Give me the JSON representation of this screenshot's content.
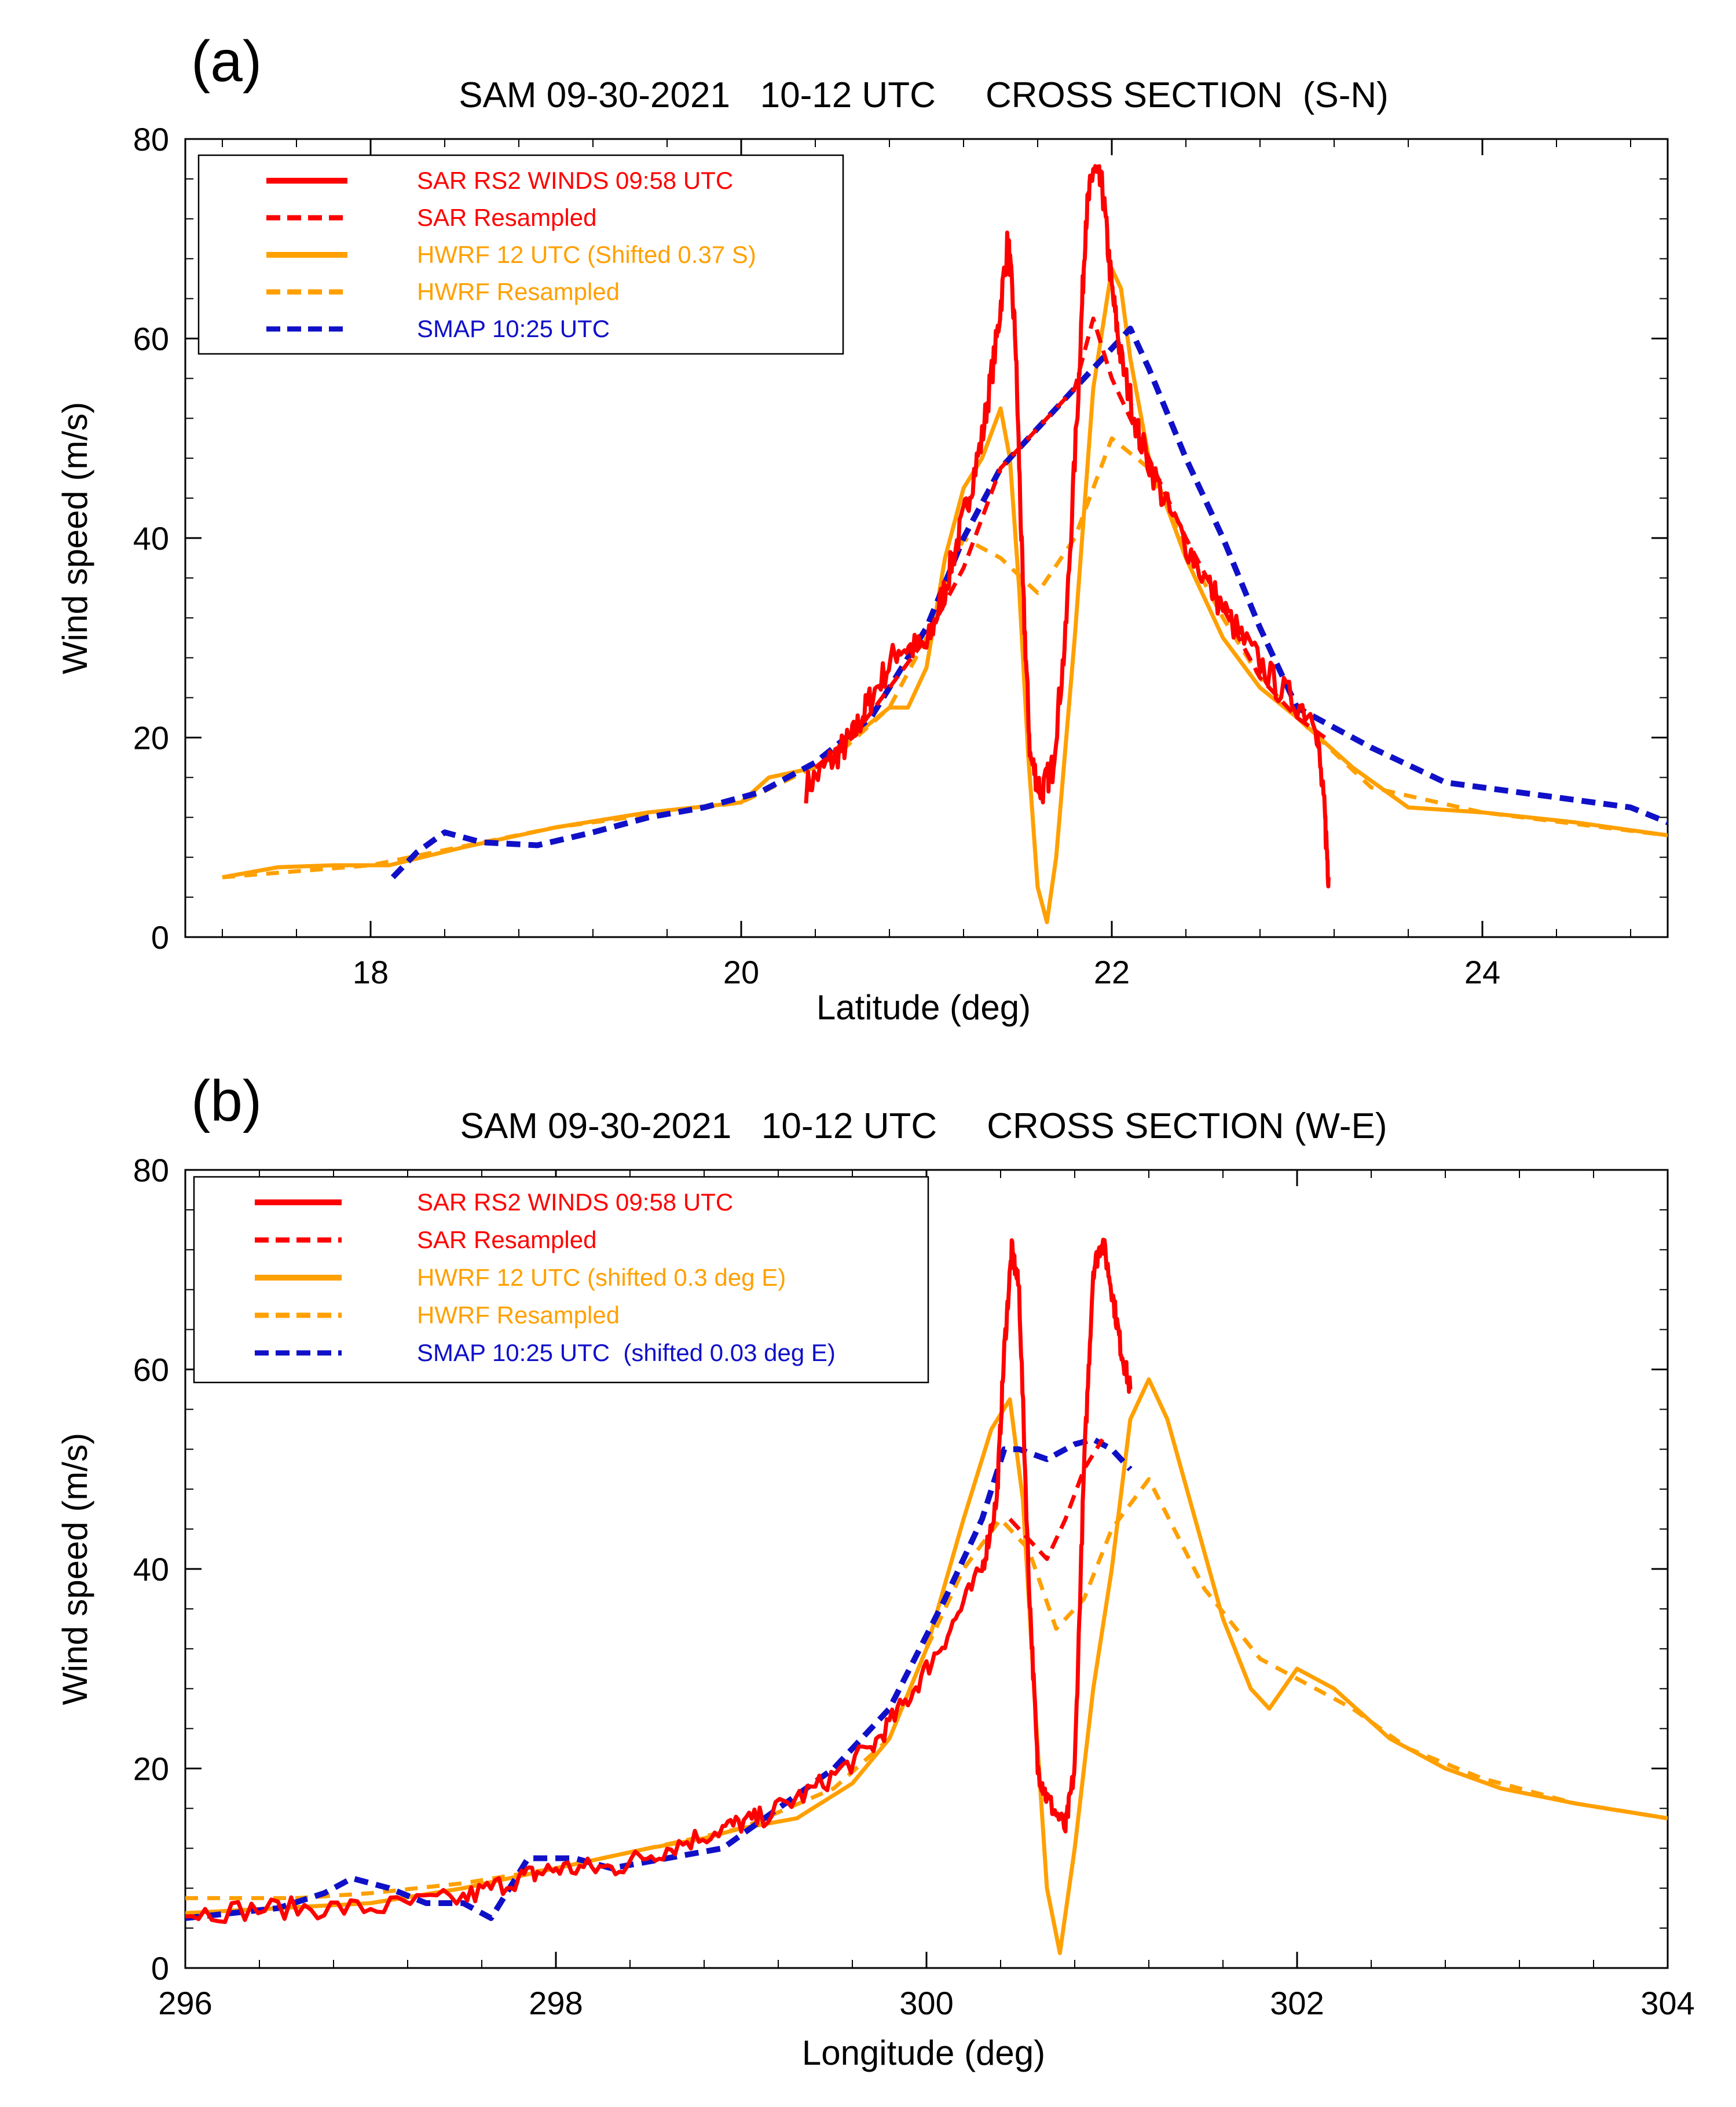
{
  "colors": {
    "sar": "#ff0000",
    "hwrf": "#ffa000",
    "smap": "#1010c8",
    "axis": "#000000"
  },
  "chart_data": [
    {
      "type": "line",
      "panel_label": "(a)",
      "title": "SAM 09-30-2021   10-12 UTC     CROSS SECTION  (S-N)",
      "xlabel": "Latitude (deg)",
      "ylabel": "Wind speed (m/s)",
      "xlim": [
        17.0,
        25.0
      ],
      "ylim": [
        0,
        80
      ],
      "xticks": [
        18,
        20,
        22,
        24
      ],
      "yticks": [
        0,
        20,
        40,
        60,
        80
      ],
      "legend_position": "top-left",
      "series": [
        {
          "name": "SAR RS2 WINDS 09:58 UTC",
          "color": "#ff0000",
          "style": "solid",
          "noise": 1.6,
          "x": [
            20.35,
            20.5,
            20.6,
            20.7,
            20.85,
            21.0,
            21.1,
            21.2,
            21.3,
            21.38,
            21.44,
            21.48,
            21.52,
            21.56,
            21.62,
            21.68,
            21.75,
            21.82,
            21.86,
            21.9,
            21.95,
            22.0,
            22.05,
            22.15,
            22.3,
            22.5,
            22.7,
            22.9,
            23.1,
            23.15,
            23.17
          ],
          "y": [
            15,
            18,
            20,
            24,
            29,
            29,
            35,
            42,
            50,
            60,
            70,
            60,
            35,
            18,
            14.5,
            17,
            30,
            55,
            72,
            77,
            75,
            65,
            58,
            50,
            43,
            36,
            30,
            25,
            22,
            12,
            6
          ]
        },
        {
          "name": "SAR Resampled",
          "color": "#ff0000",
          "style": "dashed",
          "x": [
            20.4,
            20.6,
            20.8,
            21.0,
            21.2,
            21.4,
            21.6,
            21.8,
            21.9,
            22.0,
            22.2,
            22.4,
            22.6,
            22.8,
            23.0,
            23.15
          ],
          "y": [
            17,
            20,
            25,
            30,
            37,
            47,
            51,
            55,
            62,
            56,
            48,
            40,
            33,
            26,
            22,
            20
          ]
        },
        {
          "name": "HWRF 12 UTC (Shifted 0.37 S)",
          "color": "#ffa000",
          "style": "solid",
          "x": [
            17.2,
            17.5,
            17.8,
            18.1,
            18.5,
            19.0,
            19.5,
            20.0,
            20.15,
            20.4,
            20.6,
            20.8,
            20.9,
            21.0,
            21.1,
            21.2,
            21.3,
            21.4,
            21.45,
            21.5,
            21.55,
            21.6,
            21.65,
            21.7,
            21.8,
            21.9,
            22.0,
            22.05,
            22.1,
            22.2,
            22.4,
            22.6,
            22.8,
            23.0,
            23.3,
            23.6,
            24.0,
            24.5,
            25.0
          ],
          "y": [
            6,
            7,
            7.2,
            7.2,
            9,
            11,
            12.5,
            13.5,
            16,
            17,
            20,
            23,
            23,
            27,
            38,
            45,
            48,
            53,
            48,
            35,
            18,
            5,
            1.5,
            8,
            30,
            55,
            67,
            65,
            58,
            48,
            38,
            30,
            25,
            22,
            17,
            13,
            12.5,
            11.5,
            10.2
          ]
        },
        {
          "name": "HWRF Resampled",
          "color": "#ffa000",
          "style": "dashed",
          "x": [
            17.2,
            18.0,
            19.0,
            20.0,
            20.5,
            20.8,
            21.0,
            21.2,
            21.4,
            21.6,
            21.8,
            22.0,
            22.2,
            22.4,
            22.6,
            22.8,
            23.0,
            23.4,
            24.0,
            25.0
          ],
          "y": [
            6,
            7.2,
            11,
            13.5,
            18,
            23,
            30,
            40,
            38,
            34.5,
            40,
            50,
            47,
            39,
            32,
            26,
            22,
            15,
            12.5,
            10.2
          ]
        },
        {
          "name": "SMAP 10:25 UTC",
          "color": "#1010c8",
          "style": "dashed",
          "x": [
            18.12,
            18.25,
            18.4,
            18.6,
            18.9,
            19.2,
            19.5,
            19.8,
            20.1,
            20.4,
            20.7,
            21.0,
            21.2,
            21.4,
            21.6,
            21.8,
            22.0,
            22.1,
            22.2,
            22.4,
            22.6,
            22.8,
            23.0,
            23.4,
            23.8,
            24.4,
            24.8,
            25.0
          ],
          "y": [
            6,
            8.5,
            10.5,
            9.5,
            9.2,
            10.5,
            12,
            13,
            14.5,
            17.5,
            22,
            31,
            40,
            47,
            51,
            55,
            59,
            61,
            57,
            48,
            40,
            31,
            23,
            19,
            15.5,
            14,
            13,
            11.5
          ]
        }
      ]
    },
    {
      "type": "line",
      "panel_label": "(b)",
      "title": "SAM 09-30-2021   10-12 UTC     CROSS SECTION (W-E)",
      "xlabel": "Longitude (deg)",
      "ylabel": "Wind speed (m/s)",
      "xlim": [
        296,
        304
      ],
      "ylim": [
        0,
        80
      ],
      "xticks": [
        296,
        298,
        300,
        302,
        304
      ],
      "yticks": [
        0,
        20,
        40,
        60,
        80
      ],
      "legend_position": "top-left",
      "series": [
        {
          "name": "SAR RS2 WINDS 09:58 UTC",
          "color": "#ff0000",
          "style": "solid",
          "noise": 1.1,
          "x": [
            296.0,
            296.5,
            297.0,
            297.5,
            297.8,
            298.0,
            298.3,
            298.6,
            298.9,
            299.1,
            299.4,
            299.7,
            299.9,
            300.1,
            300.3,
            300.38,
            300.42,
            300.46,
            300.5,
            300.55,
            300.6,
            300.65,
            300.75,
            300.8,
            300.85,
            300.9,
            300.95,
            301.0,
            301.05,
            301.1
          ],
          "y": [
            5.5,
            6,
            6,
            7,
            9,
            10,
            10,
            12,
            14,
            15,
            18,
            22,
            27,
            33,
            40,
            47,
            62,
            72,
            68,
            40,
            20,
            17,
            14,
            20,
            50,
            70,
            73,
            68,
            62,
            58
          ]
        },
        {
          "name": "SAR Resampled",
          "color": "#ff0000",
          "style": "dashed",
          "x": [
            300.45,
            300.55,
            300.65,
            300.75,
            300.85,
            300.95
          ],
          "y": [
            45,
            43,
            41,
            45,
            50,
            53
          ]
        },
        {
          "name": "HWRF 12 UTC (shifted 0.3 deg E)",
          "color": "#ffa000",
          "style": "solid",
          "x": [
            296.0,
            296.5,
            297.0,
            297.5,
            298.0,
            298.5,
            298.8,
            299.0,
            299.3,
            299.6,
            299.8,
            300.0,
            300.2,
            300.35,
            300.45,
            300.52,
            300.6,
            300.65,
            300.72,
            300.8,
            300.9,
            301.0,
            301.1,
            301.2,
            301.3,
            301.45,
            301.6,
            301.75,
            301.85,
            302.0,
            302.2,
            302.5,
            302.8,
            303.1,
            303.5,
            304.0
          ],
          "y": [
            5.5,
            6,
            6.5,
            8,
            10,
            12,
            13,
            14,
            15,
            18.5,
            23,
            32,
            45,
            54,
            57,
            47,
            22,
            8,
            1.5,
            12,
            28,
            40,
            55,
            59,
            55,
            45,
            35,
            28,
            26,
            30,
            28,
            23,
            20,
            18,
            16.5,
            15
          ]
        },
        {
          "name": "HWRF Resampled",
          "color": "#ffa000",
          "style": "dashed",
          "x": [
            296.0,
            296.6,
            297.0,
            297.5,
            298.0,
            298.5,
            299.0,
            299.5,
            299.8,
            300.0,
            300.2,
            300.4,
            300.55,
            300.7,
            300.85,
            301.0,
            301.2,
            301.5,
            301.8,
            302.0,
            302.3,
            302.6,
            303.0,
            303.5,
            304.0
          ],
          "y": [
            7,
            7,
            7.5,
            8.5,
            10,
            12,
            14,
            18,
            23,
            32,
            40,
            45,
            42,
            34,
            37,
            44,
            49,
            38,
            31,
            29,
            26,
            22,
            19,
            16.5,
            15
          ]
        },
        {
          "name": "SMAP 10:25 UTC  (shifted 0.03 deg E)",
          "color": "#1010c8",
          "style": "dashed",
          "x": [
            296.0,
            296.5,
            296.75,
            296.9,
            297.1,
            297.3,
            297.5,
            297.65,
            297.85,
            298.1,
            298.3,
            298.6,
            298.9,
            299.2,
            299.5,
            299.8,
            300.1,
            300.3,
            300.42,
            300.5,
            300.65,
            300.8,
            300.9,
            301.0,
            301.1
          ],
          "y": [
            5,
            6,
            7.5,
            9,
            8,
            6.5,
            6.5,
            5,
            11,
            11,
            10,
            11,
            12,
            16,
            20,
            26,
            37,
            45,
            52,
            52,
            51,
            52.5,
            53,
            52,
            50
          ]
        }
      ]
    }
  ]
}
